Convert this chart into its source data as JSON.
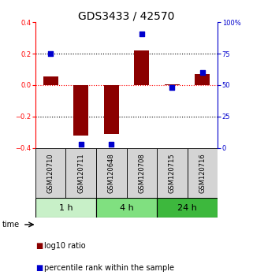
{
  "title": "GDS3433 / 42570",
  "samples": [
    "GSM120710",
    "GSM120711",
    "GSM120648",
    "GSM120708",
    "GSM120715",
    "GSM120716"
  ],
  "log10_ratio": [
    0.055,
    -0.32,
    -0.31,
    0.22,
    0.005,
    0.07
  ],
  "percentile_rank": [
    75,
    3,
    3,
    91,
    48,
    60
  ],
  "groups": [
    {
      "label": "1 h",
      "indices": [
        0,
        1
      ],
      "color": "#c8f0c8"
    },
    {
      "label": "4 h",
      "indices": [
        2,
        3
      ],
      "color": "#80e080"
    },
    {
      "label": "24 h",
      "indices": [
        4,
        5
      ],
      "color": "#3db83d"
    }
  ],
  "bar_color": "#8B0000",
  "dot_color": "#0000CD",
  "ylim_left": [
    -0.4,
    0.4
  ],
  "ylim_right": [
    0,
    100
  ],
  "yticks_left": [
    -0.4,
    -0.2,
    0.0,
    0.2,
    0.4
  ],
  "yticks_right": [
    0,
    25,
    50,
    75,
    100
  ],
  "ytick_labels_right": [
    "0",
    "25",
    "50",
    "75",
    "100%"
  ],
  "hline_red": 0.0,
  "hlines_black": [
    -0.2,
    0.2
  ],
  "bar_width": 0.5,
  "dot_size": 25,
  "title_fontsize": 10,
  "tick_fontsize": 6,
  "sample_fontsize": 6,
  "label_fontsize": 7,
  "group_label_fontsize": 8,
  "legend_fontsize": 7,
  "time_label": "time",
  "sample_label_rotation": -90
}
